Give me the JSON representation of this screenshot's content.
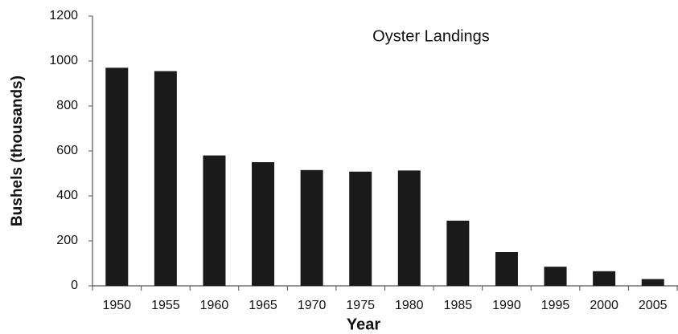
{
  "chart_data": {
    "type": "bar",
    "title": "Oyster Landings",
    "x_label": "Year",
    "y_label": "Bushels  (thousands)",
    "categories": [
      "1950",
      "1955",
      "1960",
      "1965",
      "1970",
      "1975",
      "1980",
      "1985",
      "1990",
      "1995",
      "2000",
      "2005"
    ],
    "values": [
      970,
      955,
      580,
      550,
      515,
      508,
      513,
      290,
      150,
      85,
      65,
      30
    ],
    "color": "#1a1a1a",
    "ylim": [
      0,
      1200
    ],
    "yticks": [
      0,
      200,
      400,
      600,
      800,
      1000,
      1200
    ],
    "grid": false
  }
}
